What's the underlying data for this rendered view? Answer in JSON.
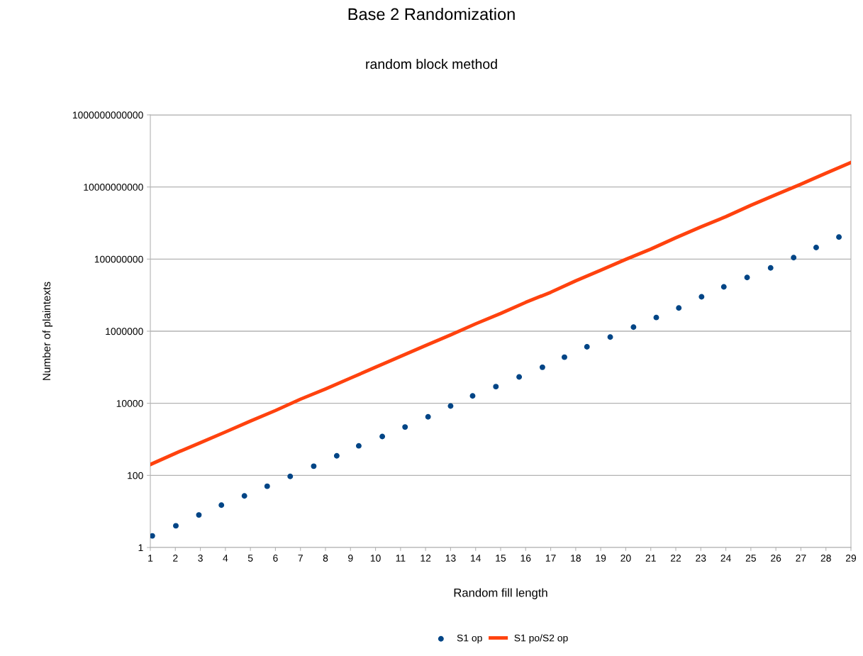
{
  "chart_data": {
    "type": "scatter",
    "title": "Base 2 Randomization",
    "subtitle": "random block method",
    "xlabel": "Random fill length",
    "ylabel": "Number of plaintexts",
    "xlim": [
      1,
      29
    ],
    "xticks": [
      1,
      2,
      3,
      4,
      5,
      6,
      7,
      8,
      9,
      10,
      11,
      12,
      13,
      14,
      15,
      16,
      17,
      18,
      19,
      20,
      21,
      22,
      23,
      24,
      25,
      26,
      27,
      28,
      29
    ],
    "ylim": [
      1,
      1000000000000
    ],
    "yticks": [
      1,
      100,
      10000,
      1000000,
      100000000,
      10000000000,
      1000000000000
    ],
    "log": "y",
    "grid": "y",
    "legend": "bottom",
    "series": [
      {
        "name": "S1 op",
        "marker": "circle",
        "color": "#004586",
        "x": [
          1.08,
          2.02,
          2.94,
          3.84,
          4.76,
          5.67,
          6.59,
          7.53,
          8.45,
          9.33,
          10.27,
          11.18,
          12.1,
          13.0,
          13.88,
          14.81,
          15.74,
          16.67,
          17.55,
          18.45,
          19.38,
          20.31,
          21.22,
          22.12,
          23.03,
          23.92,
          24.85,
          25.79,
          26.71,
          27.61,
          28.52
        ],
        "values": [
          2.1,
          4.0,
          8.0,
          15,
          27,
          50,
          94,
          180,
          350,
          660,
          1200,
          2200,
          4200,
          8400,
          16000,
          29000,
          54000,
          100000,
          190000,
          370000,
          690000,
          1300000,
          2400000,
          4400000,
          9000000,
          17000000,
          31000000,
          57000000,
          110000000,
          210000000,
          410000000
        ]
      },
      {
        "name": "S1 po/S2 op",
        "type": "line",
        "line_style": "solid",
        "color": "#ff420e",
        "x": [
          1,
          2,
          3,
          4,
          5,
          6,
          7,
          8,
          9,
          10,
          11,
          12,
          13,
          14,
          15,
          16,
          17,
          18,
          19,
          20,
          21,
          22,
          23,
          24,
          25,
          26,
          27,
          28,
          29
        ],
        "values": [
          200,
          410,
          810,
          1600,
          3200,
          6300,
          13000,
          25000,
          50000,
          100000,
          200000,
          400000,
          790000,
          1600000,
          3100000,
          6300000,
          12000000,
          25000000,
          49000000,
          98000000,
          190000000,
          390000000,
          780000000,
          1500000000,
          3100000000,
          6100000000,
          12000000000,
          24000000000,
          48000000000
        ]
      }
    ]
  }
}
